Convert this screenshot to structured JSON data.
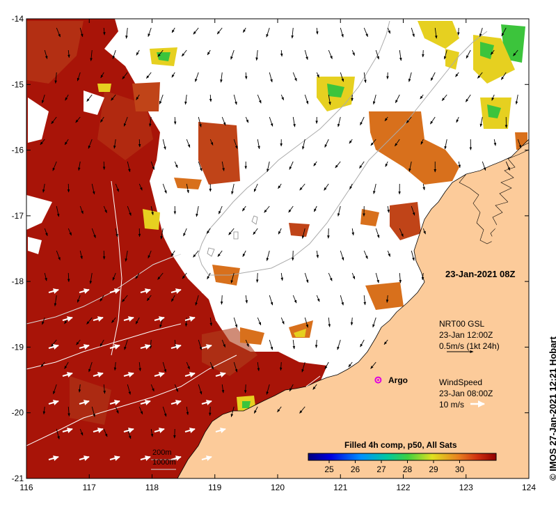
{
  "title": {
    "date": "23-Jan-2021 08Z",
    "credit": "© IMOS 27-Jan-2021 12:21 Hobart"
  },
  "axes": {
    "lon_ticks": [
      "116",
      "117",
      "118",
      "119",
      "120",
      "121",
      "122",
      "123",
      "124"
    ],
    "lat_ticks": [
      "-14",
      "-15",
      "-16",
      "-17",
      "-18",
      "-19",
      "-20",
      "-21"
    ],
    "lon_range": [
      116,
      124
    ],
    "lat_range": [
      -21,
      -14
    ]
  },
  "current_legend": {
    "line1": "NRT00 GSL",
    "line2": "23-Jan 12:00Z",
    "line3": "0.5m/s (1kt 24h)"
  },
  "wind_legend": {
    "line1": "WindSpeed",
    "line2": "23-Jan 08:00Z",
    "line3": "10 m/s"
  },
  "argo": {
    "label": "Argo",
    "lon": 121.6,
    "lat": -19.5
  },
  "depth_legend": {
    "line1": "200m",
    "line2": "1000m"
  },
  "colorbar": {
    "title": "Filled 4h comp, p50, All Sats",
    "ticks": [
      "25",
      "26",
      "27",
      "28",
      "29",
      "30"
    ],
    "range": [
      24.2,
      31.4
    ]
  },
  "colors": {
    "land": "#fccb9a",
    "warm": "#a81408",
    "hot": "#c04418",
    "orange": "#d8701c",
    "yellow": "#e6d020",
    "green": "#3cc43c"
  }
}
